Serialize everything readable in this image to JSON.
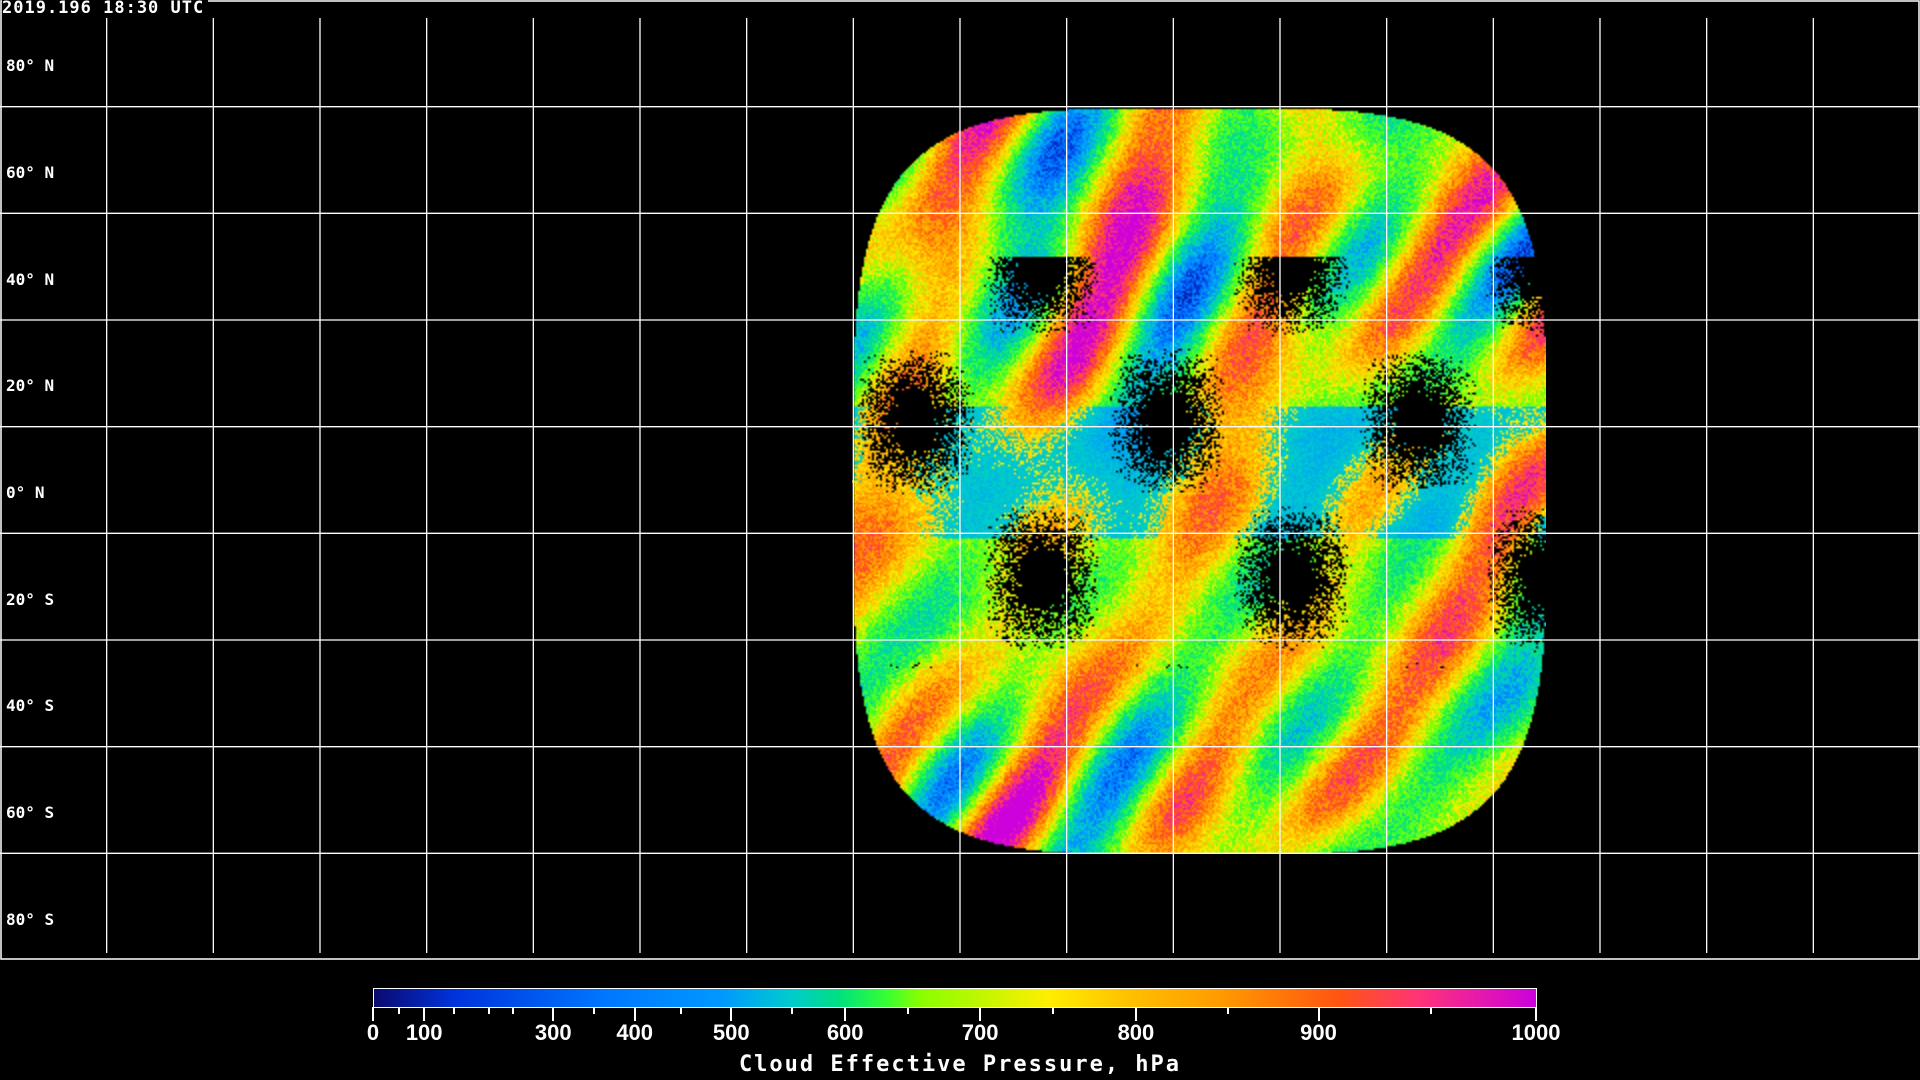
{
  "header": {
    "timestamp": "2019.196 18:30 UTC"
  },
  "map": {
    "projection": "equirectangular",
    "grid_spacing_deg": 20,
    "lat_labels": [
      "80° N",
      "60° N",
      "40° N",
      "20° N",
      "0° N",
      "20° S",
      "40° S",
      "60° S",
      "80° S"
    ],
    "lat_values": [
      80,
      60,
      40,
      20,
      0,
      -20,
      -40,
      -60,
      -80
    ],
    "line_color": "#ffffff",
    "background": "#000000"
  },
  "colorbar": {
    "title": "Cloud Effective Pressure, hPa",
    "tick_labels": [
      "0",
      "100",
      "300",
      "400",
      "500",
      "600",
      "700",
      "800",
      "900",
      "1000"
    ],
    "range": [
      0,
      1000
    ],
    "colors": [
      "#0a0a6e",
      "#0033dd",
      "#0077ff",
      "#0099ff",
      "#00cccc",
      "#00e080",
      "#33ff33",
      "#88ff00",
      "#ffee00",
      "#ffc000",
      "#ff9900",
      "#ff5511",
      "#ff3377",
      "#cc00dd"
    ]
  }
}
